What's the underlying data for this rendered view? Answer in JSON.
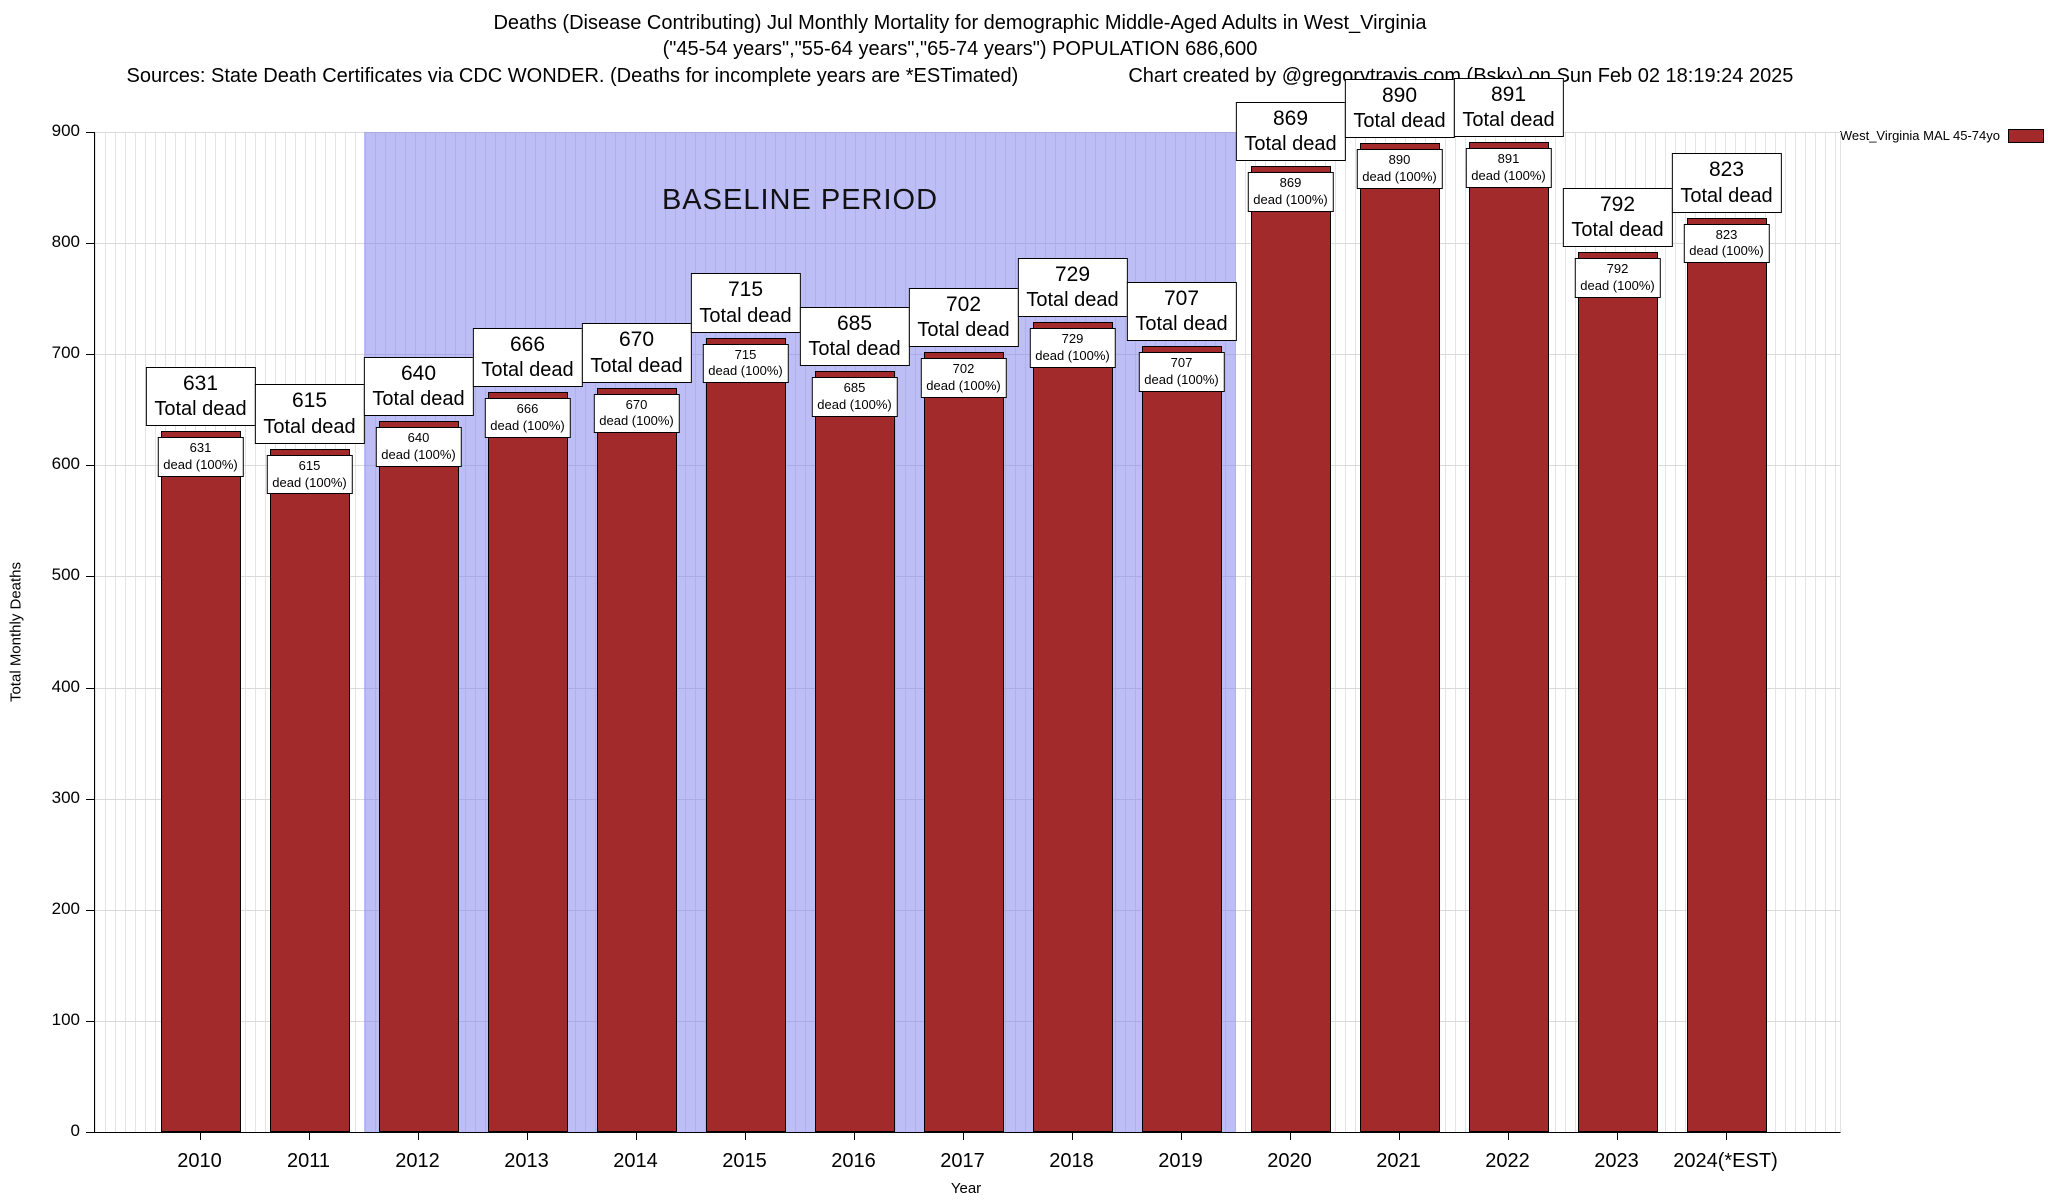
{
  "chart_data": {
    "type": "bar",
    "title": "Deaths (Disease Contributing) Jul Monthly Mortality for demographic Middle-Aged Adults in West_Virginia",
    "subtitle": "(\"45-54 years\",\"55-64 years\",\"65-74 years\") POPULATION 686,600",
    "source_line": "Sources: State Death Certificates via CDC WONDER. (Deaths for incomplete years are *ESTimated)",
    "credit_line": "Chart created by @gregorytravis.com (Bsky) on Sun Feb 02 18:19:24 2025",
    "xlabel": "Year",
    "ylabel": "Total Monthly Deaths",
    "ylim": [
      0,
      900
    ],
    "yticks": [
      0,
      100,
      200,
      300,
      400,
      500,
      600,
      700,
      800,
      900
    ],
    "grid": true,
    "categories": [
      "2010",
      "2011",
      "2012",
      "2013",
      "2014",
      "2015",
      "2016",
      "2017",
      "2018",
      "2019",
      "2020",
      "2021",
      "2022",
      "2023",
      "2024(*EST)"
    ],
    "values": [
      631,
      615,
      640,
      666,
      670,
      715,
      685,
      702,
      729,
      707,
      869,
      890,
      891,
      792,
      823
    ],
    "bar_label_suffix": "Total dead",
    "inner_label_suffix": "dead (100%)",
    "baseline": {
      "label": "BASELINE PERIOD",
      "start_category": "2012",
      "end_category": "2019"
    },
    "legend": {
      "label": "West_Virginia MAL 45-74yo",
      "position": "top-right"
    },
    "colors": {
      "bar": "#a32a2a",
      "baseline_fill": "#7d7df0",
      "grid": "#dadada",
      "stripe": "#e4e4e4"
    }
  }
}
